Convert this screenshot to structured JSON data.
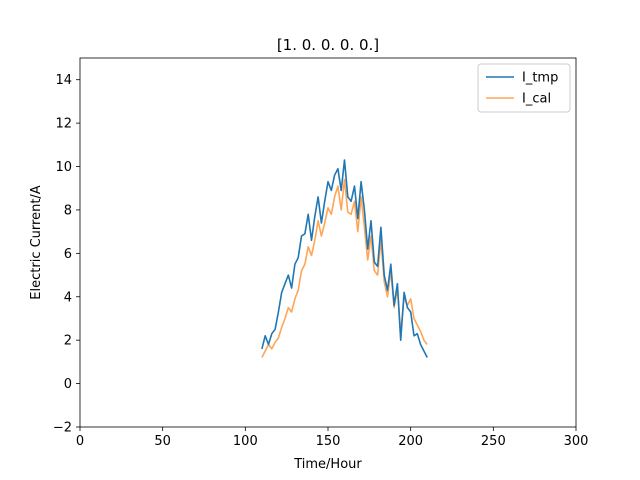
{
  "chart_data": {
    "type": "line",
    "title": "[1. 0. 0. 0. 0.]",
    "xlabel": "Time/Hour",
    "ylabel": "Electric Current/A",
    "xlim": [
      0,
      300
    ],
    "ylim": [
      -2,
      15
    ],
    "xticks": [
      0,
      50,
      100,
      150,
      200,
      250,
      300
    ],
    "yticks": [
      -2,
      0,
      2,
      4,
      6,
      8,
      10,
      12,
      14
    ],
    "grid": false,
    "legend_position": "top-right",
    "series": [
      {
        "name": "I_tmp",
        "color": "#1f77b4",
        "x": [
          110,
          112,
          114,
          116,
          118,
          120,
          122,
          124,
          126,
          128,
          130,
          132,
          134,
          136,
          138,
          140,
          142,
          144,
          146,
          148,
          150,
          152,
          154,
          156,
          158,
          160,
          162,
          164,
          166,
          168,
          170,
          172,
          174,
          176,
          178,
          180,
          182,
          184,
          186,
          188,
          190,
          192,
          194,
          196,
          198,
          200,
          202,
          204,
          206,
          208,
          210
        ],
        "y": [
          1.6,
          2.2,
          1.8,
          2.3,
          2.5,
          3.3,
          4.2,
          4.6,
          5.0,
          4.4,
          5.5,
          5.8,
          6.8,
          6.9,
          7.8,
          6.6,
          7.7,
          8.6,
          7.4,
          8.4,
          9.3,
          8.9,
          9.6,
          9.9,
          8.9,
          10.3,
          8.6,
          8.4,
          9.1,
          7.6,
          9.3,
          8.0,
          6.2,
          7.5,
          5.6,
          5.4,
          7.2,
          5.0,
          4.3,
          5.5,
          3.6,
          4.6,
          2.0,
          4.2,
          3.5,
          3.3,
          2.2,
          2.3,
          1.8,
          1.5,
          1.2
        ]
      },
      {
        "name": "I_cal",
        "color": "#ff7f0e",
        "x": [
          110,
          112,
          114,
          116,
          118,
          120,
          122,
          124,
          126,
          128,
          130,
          132,
          134,
          136,
          138,
          140,
          142,
          144,
          146,
          148,
          150,
          152,
          154,
          156,
          158,
          160,
          162,
          164,
          166,
          168,
          170,
          172,
          174,
          176,
          178,
          180,
          182,
          184,
          186,
          188,
          190,
          192,
          194,
          196,
          198,
          200,
          202,
          204,
          206,
          208,
          210
        ],
        "y": [
          1.2,
          1.5,
          1.8,
          1.6,
          1.9,
          2.1,
          2.6,
          3.0,
          3.5,
          3.3,
          3.9,
          4.3,
          5.2,
          5.5,
          6.3,
          5.9,
          6.6,
          7.5,
          6.8,
          7.4,
          8.1,
          7.8,
          8.6,
          9.1,
          8.0,
          9.4,
          7.9,
          7.8,
          8.4,
          7.0,
          8.6,
          7.2,
          5.7,
          6.8,
          5.2,
          5.0,
          6.6,
          4.7,
          4.0,
          5.2,
          3.5,
          4.4,
          2.3,
          4.0,
          3.6,
          3.9,
          3.0,
          2.7,
          2.4,
          2.0,
          1.8
        ]
      }
    ]
  }
}
